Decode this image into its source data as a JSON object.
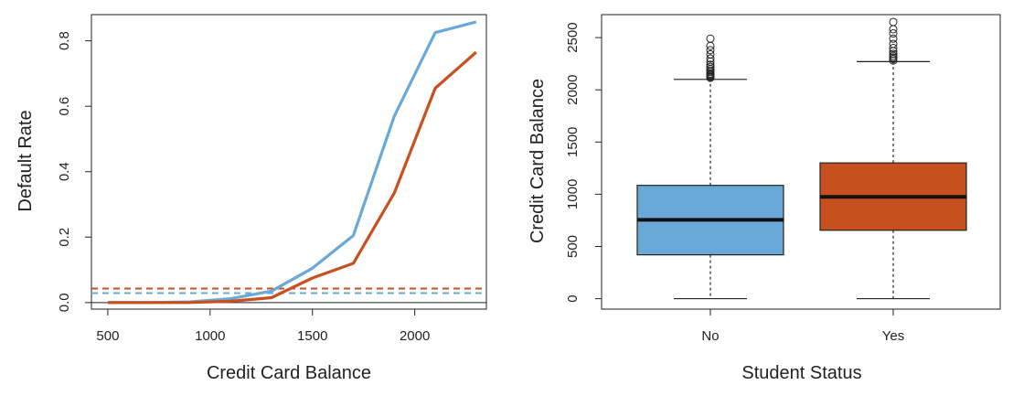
{
  "colors": {
    "nonstudent": "#6aa8d8",
    "student": "#c8501f",
    "box_border": "#222222",
    "axis": "#222222"
  },
  "chart_data": [
    {
      "type": "line",
      "xlabel": "Credit Card Balance",
      "ylabel": "Default Rate",
      "xlim": [
        420,
        2350
      ],
      "ylim": [
        -0.02,
        0.88
      ],
      "x_ticks": [
        500,
        1000,
        1500,
        2000
      ],
      "x_tick_labels": [
        "500",
        "1000",
        "1500",
        "2000"
      ],
      "y_ticks": [
        0.0,
        0.2,
        0.4,
        0.6,
        0.8
      ],
      "y_tick_labels": [
        "0.0",
        "0.2",
        "0.4",
        "0.6",
        "0.8"
      ],
      "grid": false,
      "reference_line_y": 0.0,
      "series": [
        {
          "color_key": "nonstudent",
          "style": "solid",
          "x": [
            500,
            700,
            900,
            1100,
            1300,
            1500,
            1700,
            1900,
            2100,
            2300
          ],
          "y": [
            0.0,
            0.0,
            0.002,
            0.012,
            0.035,
            0.105,
            0.205,
            0.57,
            0.825,
            0.858
          ]
        },
        {
          "color_key": "student",
          "style": "solid",
          "x": [
            500,
            700,
            900,
            1100,
            1300,
            1350,
            1500,
            1700,
            1900,
            2100,
            2300
          ],
          "y": [
            0.0,
            0.0,
            0.0,
            0.004,
            0.015,
            0.03,
            0.075,
            0.12,
            0.335,
            0.655,
            0.765
          ]
        },
        {
          "color_key": "nonstudent",
          "style": "dashed",
          "x": [
            420,
            2350
          ],
          "y": [
            0.029,
            0.029
          ]
        },
        {
          "color_key": "student",
          "style": "dashed",
          "x": [
            420,
            2350
          ],
          "y": [
            0.043,
            0.043
          ]
        }
      ]
    },
    {
      "type": "box",
      "xlabel": "Student Status",
      "ylabel": "Credit Card Balance",
      "categories": [
        "No",
        "Yes"
      ],
      "ylim": [
        -100,
        2720
      ],
      "y_ticks": [
        0,
        500,
        1000,
        1500,
        2000,
        2500
      ],
      "y_tick_labels": [
        "0",
        "500",
        "1000",
        "1500",
        "2000",
        "2500"
      ],
      "boxes": [
        {
          "category": "No",
          "color_key": "nonstudent",
          "min": 0,
          "q1": 420,
          "median": 755,
          "q3": 1085,
          "max": 2100,
          "outliers": [
            2115,
            2125,
            2135,
            2145,
            2155,
            2170,
            2185,
            2200,
            2220,
            2240,
            2270,
            2300,
            2340,
            2380,
            2420,
            2490
          ]
        },
        {
          "category": "Yes",
          "color_key": "student",
          "min": 0,
          "q1": 655,
          "median": 975,
          "q3": 1300,
          "max": 2270,
          "outliers": [
            2280,
            2295,
            2310,
            2325,
            2345,
            2370,
            2400,
            2440,
            2490,
            2540,
            2580,
            2650
          ]
        }
      ]
    }
  ]
}
